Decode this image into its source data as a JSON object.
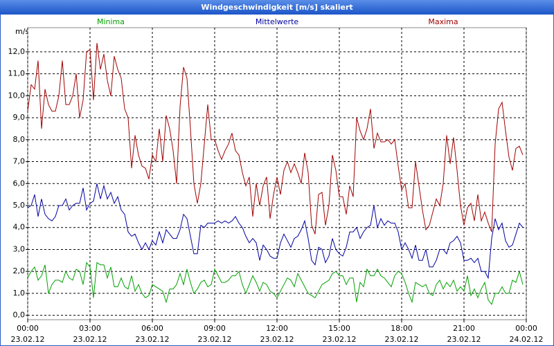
{
  "chart_data": {
    "type": "line",
    "title": "Windgeschwindigkeit [m/s] skaliert",
    "y_label": "m/s",
    "x": [
      0,
      10,
      20,
      30,
      40,
      50,
      60,
      70,
      80,
      90,
      100,
      110,
      120,
      130,
      140,
      150,
      160,
      170,
      180,
      190,
      200,
      210,
      220,
      230,
      240,
      250,
      260,
      270,
      280,
      290,
      300,
      310,
      320,
      330,
      340,
      350,
      360,
      370,
      380,
      390,
      400,
      410,
      420,
      430,
      440,
      450,
      460,
      470,
      480,
      490,
      500,
      510,
      520,
      530,
      540,
      550,
      560,
      570,
      580,
      590,
      600,
      610,
      620,
      630,
      640,
      650,
      660,
      670,
      680,
      690,
      700,
      710,
      720,
      730,
      740,
      750,
      760,
      770,
      780,
      790,
      800,
      810,
      820,
      830,
      840,
      850,
      860,
      870,
      880,
      890,
      900,
      910,
      920,
      930,
      940,
      950,
      960,
      970,
      980,
      990,
      1000,
      1010,
      1020,
      1030,
      1040,
      1050,
      1060,
      1070,
      1080,
      1090,
      1100,
      1110,
      1120,
      1130,
      1140,
      1150,
      1160,
      1170,
      1180,
      1190,
      1200,
      1210,
      1220,
      1230,
      1240,
      1250,
      1260,
      1270,
      1280,
      1290,
      1300,
      1310,
      1320,
      1330,
      1340,
      1350,
      1360,
      1370,
      1380,
      1390,
      1400,
      1410,
      1420,
      1430
    ],
    "series": [
      {
        "name": "Minima",
        "color": "#00a000",
        "values": [
          1.7,
          2.0,
          2.2,
          1.6,
          1.8,
          2.3,
          1.0,
          1.4,
          1.6,
          1.6,
          1.5,
          2.0,
          1.7,
          1.6,
          2.1,
          2.0,
          1.4,
          2.4,
          2.2,
          0.8,
          2.4,
          2.3,
          2.3,
          1.7,
          2.2,
          1.3,
          1.3,
          1.7,
          1.3,
          1.2,
          1.8,
          1.1,
          1.4,
          1.0,
          0.8,
          0.9,
          1.4,
          1.3,
          1.2,
          1.1,
          0.6,
          1.2,
          1.2,
          1.4,
          1.9,
          1.4,
          2.1,
          1.5,
          1.0,
          1.2,
          1.5,
          1.6,
          1.3,
          1.4,
          2.1,
          1.8,
          1.5,
          1.5,
          1.6,
          1.8,
          1.8,
          2.0,
          1.4,
          1.0,
          1.4,
          1.8,
          1.5,
          1.1,
          1.5,
          1.4,
          1.1,
          1.0,
          0.8,
          1.1,
          1.4,
          1.7,
          1.6,
          1.3,
          1.9,
          1.6,
          1.3,
          1.0,
          0.9,
          0.8,
          1.1,
          1.4,
          1.5,
          1.6,
          1.9,
          2.0,
          1.8,
          1.8,
          1.4,
          1.7,
          1.7,
          0.6,
          1.5,
          1.3,
          2.1,
          1.8,
          1.8,
          2.1,
          1.8,
          1.7,
          1.5,
          1.3,
          1.8,
          2.0,
          1.9,
          1.5,
          1.0,
          0.6,
          1.5,
          1.4,
          1.3,
          1.4,
          1.0,
          0.9,
          1.4,
          1.6,
          1.2,
          1.5,
          1.3,
          1.6,
          1.1,
          1.3,
          1.1,
          1.8,
          0.9,
          1.2,
          0.8,
          1.2,
          1.5,
          0.7,
          0.5,
          1.0,
          1.0,
          1.3,
          1.0,
          1.0,
          1.6,
          1.5,
          2.0,
          1.4
        ]
      },
      {
        "name": "Mittelwerte",
        "color": "#0000a0",
        "values": [
          4.9,
          5.0,
          5.5,
          4.5,
          5.3,
          4.6,
          4.4,
          4.3,
          4.5,
          5.0,
          5.0,
          5.3,
          4.8,
          5.0,
          5.1,
          5.1,
          5.8,
          4.8,
          5.1,
          5.2,
          6.0,
          5.3,
          5.9,
          5.3,
          5.6,
          5.1,
          5.4,
          4.8,
          4.6,
          3.8,
          3.6,
          3.7,
          3.3,
          3.0,
          3.3,
          3.0,
          3.4,
          3.2,
          3.8,
          3.3,
          3.9,
          3.7,
          3.5,
          3.5,
          3.9,
          4.6,
          4.4,
          3.6,
          2.8,
          2.8,
          4.1,
          4.0,
          4.2,
          4.2,
          4.2,
          4.3,
          4.2,
          4.3,
          4.2,
          4.3,
          4.5,
          4.2,
          4.0,
          3.6,
          3.3,
          3.5,
          3.3,
          2.5,
          3.2,
          3.0,
          2.7,
          2.6,
          2.6,
          3.3,
          3.7,
          3.4,
          3.1,
          3.5,
          3.6,
          3.9,
          4.3,
          3.5,
          2.5,
          2.3,
          3.1,
          3.0,
          2.4,
          2.7,
          3.5,
          3.0,
          2.8,
          2.7,
          3.1,
          3.8,
          3.8,
          4.0,
          3.5,
          3.8,
          4.0,
          4.1,
          5.0,
          4.0,
          4.4,
          4.1,
          4.3,
          4.2,
          4.2,
          3.8,
          3.0,
          3.3,
          3.0,
          2.6,
          3.2,
          2.5,
          2.5,
          3.0,
          2.2,
          2.2,
          2.5,
          3.0,
          3.0,
          2.8,
          3.3,
          3.4,
          3.6,
          3.3,
          2.5,
          2.5,
          2.6,
          2.4,
          2.6,
          2.0,
          2.0,
          1.7,
          3.5,
          4.4,
          3.9,
          4.2,
          3.4,
          3.1,
          3.2,
          3.7,
          4.2,
          4.0
        ]
      },
      {
        "name": "Maxima",
        "color": "#a00000",
        "values": [
          9.3,
          10.5,
          10.3,
          11.6,
          8.5,
          10.3,
          9.6,
          9.3,
          9.3,
          10.0,
          11.6,
          9.6,
          9.6,
          10.0,
          11.0,
          9.0,
          9.8,
          12.0,
          12.1,
          9.8,
          12.4,
          11.2,
          11.9,
          10.7,
          10.0,
          11.8,
          11.2,
          10.8,
          9.4,
          9.0,
          6.7,
          8.2,
          7.3,
          6.8,
          6.7,
          6.2,
          7.3,
          7.0,
          8.5,
          7.0,
          9.1,
          8.5,
          7.5,
          6.0,
          9.5,
          11.3,
          10.8,
          8.5,
          6.0,
          5.1,
          6.0,
          7.8,
          9.6,
          8.0,
          8.0,
          7.5,
          7.1,
          7.5,
          7.8,
          8.3,
          7.5,
          7.3,
          6.5,
          5.9,
          6.3,
          4.5,
          6.0,
          5.0,
          5.9,
          6.3,
          4.4,
          5.5,
          6.3,
          5.5,
          6.6,
          7.0,
          6.5,
          6.9,
          6.5,
          6.0,
          7.4,
          6.5,
          4.1,
          3.7,
          5.5,
          5.6,
          4.1,
          5.0,
          7.3,
          6.6,
          5.4,
          5.4,
          4.6,
          5.9,
          5.4,
          9.0,
          8.4,
          8.0,
          8.5,
          9.4,
          7.6,
          8.3,
          7.9,
          7.9,
          8.0,
          7.8,
          8.0,
          6.8,
          5.7,
          6.0,
          4.9,
          4.9,
          7.0,
          5.9,
          4.8,
          3.9,
          4.1,
          4.7,
          5.3,
          5.0,
          6.0,
          8.2,
          6.9,
          8.1,
          6.6,
          5.0,
          4.1,
          4.9,
          5.1,
          4.3,
          5.5,
          4.3,
          4.7,
          4.2,
          3.8,
          7.8,
          9.4,
          9.7,
          8.4,
          7.2,
          6.6,
          7.6,
          7.7,
          7.3
        ]
      }
    ],
    "xlim": [
      0,
      1440
    ],
    "xticks": [
      {
        "value": 0,
        "label": "00:00\n23.02.12"
      },
      {
        "value": 180,
        "label": "03:00\n23.02.12"
      },
      {
        "value": 360,
        "label": "06:00\n23.02.12"
      },
      {
        "value": 540,
        "label": "09:00\n23.02.12"
      },
      {
        "value": 720,
        "label": "12:00\n23.02.12"
      },
      {
        "value": 900,
        "label": "15:00\n23.02.12"
      },
      {
        "value": 1080,
        "label": "18:00\n23.02.12"
      },
      {
        "value": 1260,
        "label": "21:00\n23.02.12"
      },
      {
        "value": 1440,
        "label": "00:00\n24.02.12"
      }
    ],
    "ylim": [
      -0.2,
      13.1
    ],
    "yticks": [
      {
        "value": 0,
        "label": "0,0"
      },
      {
        "value": 1,
        "label": "1,0"
      },
      {
        "value": 2,
        "label": "2,0"
      },
      {
        "value": 3,
        "label": "3,0"
      },
      {
        "value": 4,
        "label": "4,0"
      },
      {
        "value": 5,
        "label": "5,0"
      },
      {
        "value": 6,
        "label": "6,0"
      },
      {
        "value": 7,
        "label": "7,0"
      },
      {
        "value": 8,
        "label": "8,0"
      },
      {
        "value": 9,
        "label": "9,0"
      },
      {
        "value": 10,
        "label": "10,0"
      },
      {
        "value": 11,
        "label": "11,0"
      },
      {
        "value": 12,
        "label": "12,0"
      }
    ],
    "grid": true
  }
}
